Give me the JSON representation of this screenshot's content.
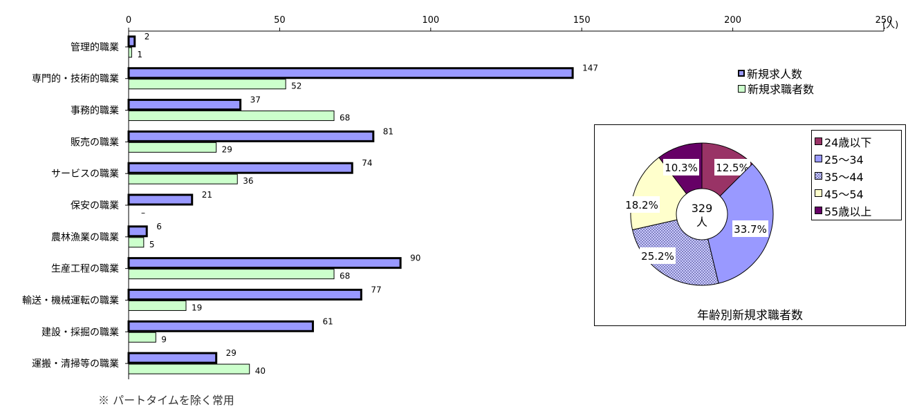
{
  "note": "※  パートタイムを除く常用",
  "unit_label": "(人)",
  "chart_data": [
    {
      "type": "bar",
      "orientation": "horizontal",
      "categories": [
        "管理的職業",
        "専門的・技術的職業",
        "事務的職業",
        "販売の職業",
        "サービスの職業",
        "保安の職業",
        "農林漁業の職業",
        "生産工程の職業",
        "輸送・機械運転の職業",
        "建設・採掘の職業",
        "運搬・清掃等の職業"
      ],
      "series": [
        {
          "name": "新規求人数",
          "values": [
            2,
            147,
            37,
            81,
            74,
            21,
            6,
            90,
            77,
            61,
            29
          ],
          "labels": [
            "2",
            "147",
            "37",
            "81",
            "74",
            "21",
            "6",
            "90",
            "77",
            "61",
            "29"
          ],
          "color": "#9999ff"
        },
        {
          "name": "新規求職者数",
          "values": [
            1,
            52,
            68,
            29,
            36,
            0,
            5,
            68,
            19,
            9,
            40
          ],
          "labels": [
            "1",
            "52",
            "68",
            "29",
            "36",
            "–",
            "5",
            "68",
            "19",
            "9",
            "40"
          ],
          "color": "#ccffcc"
        }
      ],
      "xlim": [
        0,
        250
      ],
      "xticks": [
        "0",
        "50",
        "100",
        "150",
        "200",
        "250"
      ],
      "grid": false,
      "legend_position": "top-right"
    },
    {
      "type": "pie",
      "title": "年齢別新規求職者数",
      "center_label": "329\n人",
      "slices": [
        {
          "name": "24歳以下",
          "value": 12.5,
          "label": "12.5%",
          "color": "#993366"
        },
        {
          "name": "25～34",
          "value": 33.7,
          "label": "33.7%",
          "color": "#9999ff"
        },
        {
          "name": "35～44",
          "value": 25.2,
          "label": "25.2%",
          "color": "#ccccff",
          "pattern": "checker"
        },
        {
          "name": "45～54",
          "value": 18.2,
          "label": "18.2%",
          "color": "#ffffcc"
        },
        {
          "name": "55歳以上",
          "value": 10.3,
          "label": "10.3%",
          "color": "#660066"
        }
      ],
      "legend_position": "right"
    }
  ]
}
